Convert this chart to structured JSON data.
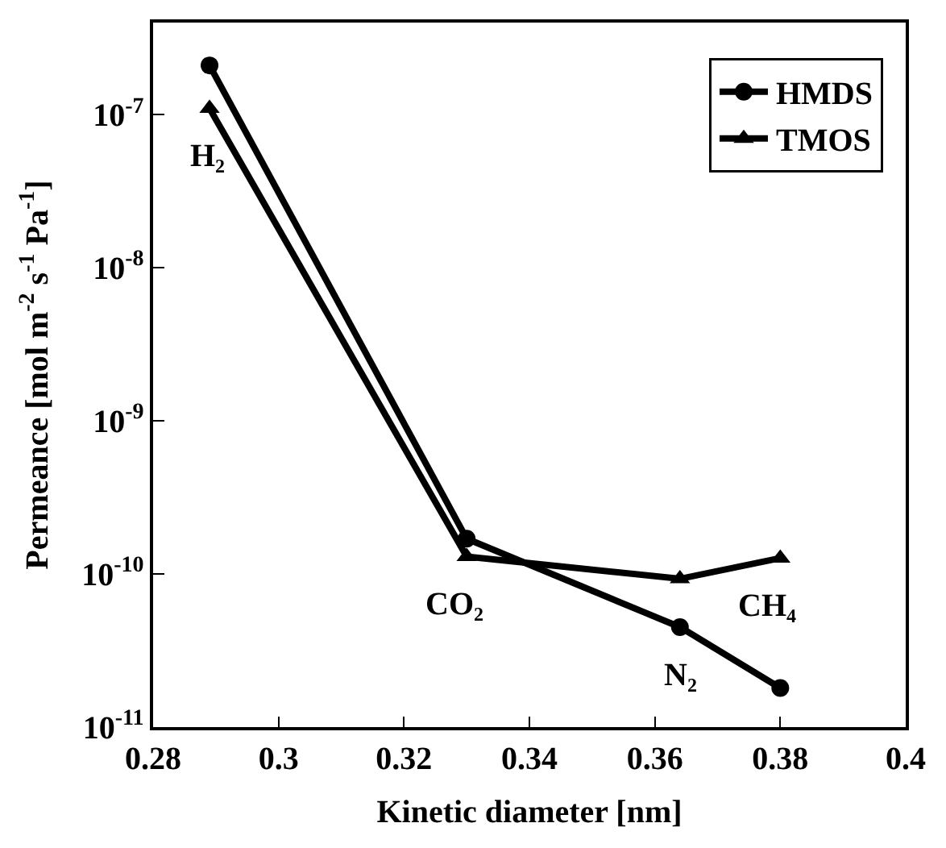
{
  "chart_data": {
    "type": "line",
    "xlabel": "Kinetic diameter [nm]",
    "ylabel": "Permeance [mol m$^{-2}$ s$^{-1}$ Pa$^{-1}$]",
    "x": [
      0.289,
      0.33,
      0.364,
      0.38
    ],
    "series": [
      {
        "name": "HMDS",
        "color": "#000000",
        "marker": "circle",
        "values": [
          2.1e-07,
          1.7e-10,
          4.5e-11,
          1.8e-11
        ]
      },
      {
        "name": "TMOS",
        "color": "#000000",
        "marker": "triangle",
        "values": [
          1.1e-07,
          1.3e-10,
          9.3e-11,
          1.27e-10
        ]
      }
    ],
    "log": "y",
    "xlim": [
      0.28,
      0.4
    ],
    "xticks": [
      0.28,
      {
        "value": 0.3,
        "label": "0.3"
      },
      0.32,
      0.34,
      0.36,
      0.38,
      {
        "value": 0.4,
        "label": "0.4"
      }
    ],
    "ylim": [
      1e-11,
      4e-07
    ],
    "yticks": [
      {
        "value": 1e-11,
        "label": "10$^{-11}$"
      },
      {
        "value": 1e-10,
        "label": "10$^{-10}$"
      },
      {
        "value": 1e-09,
        "label": "10$^{-9}$"
      },
      {
        "value": 1e-08,
        "label": "10$^{-8}$"
      },
      {
        "value": 1e-07,
        "label": "10$^{-7}$"
      }
    ],
    "annotations": [
      {
        "text": "H₂",
        "x": 0.289,
        "y": 1.1e-07
      },
      {
        "text": "CO₂",
        "x": 0.33,
        "y": 1.3e-10
      },
      {
        "text": "N₂",
        "x": 0.364,
        "y": 4.5e-11
      },
      {
        "text": "CH₄",
        "x": 0.38,
        "y": 1.27e-10
      }
    ],
    "legend": "top right",
    "line_style": "solid"
  }
}
